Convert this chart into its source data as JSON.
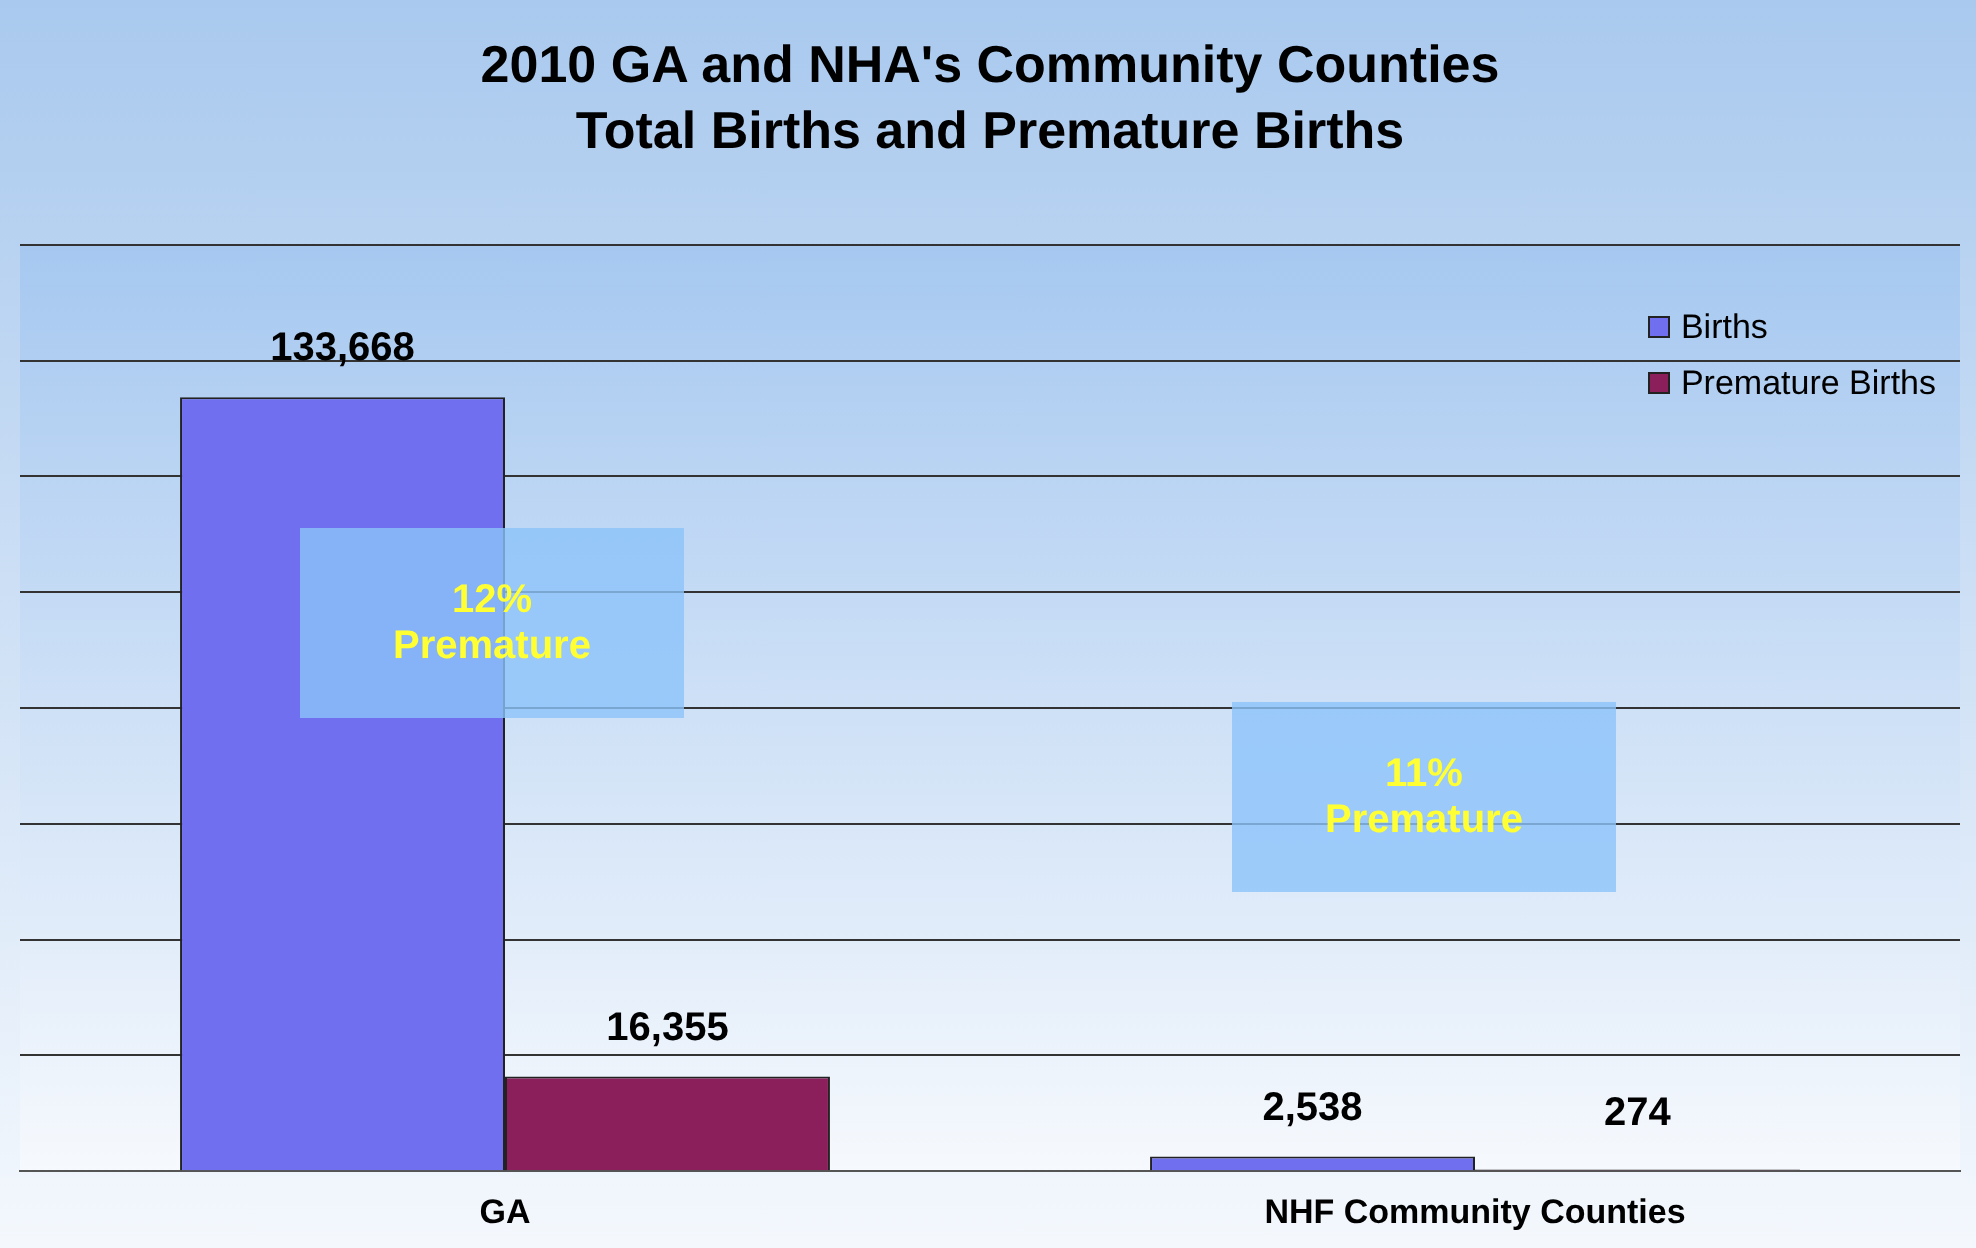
{
  "chart_data": {
    "type": "bar",
    "title": "2010 GA and NHA's Community Counties",
    "subtitle": "Total Births and Premature Births",
    "categories": [
      "GA",
      "NHF Community Counties"
    ],
    "series": [
      {
        "name": "Births",
        "color": "#6f6ff0",
        "values": [
          133668,
          2538
        ],
        "value_labels": [
          "133,668",
          "2,538"
        ]
      },
      {
        "name": "Premature Births",
        "color": "#8a1f5c",
        "values": [
          16355,
          274
        ],
        "value_labels": [
          "16,355",
          "274"
        ]
      }
    ],
    "ylim": [
      0,
      160000
    ],
    "yticks": [
      {
        "value": 0,
        "label": null
      },
      {
        "value": 20000,
        "label": null
      },
      {
        "value": 40000,
        "label": null
      },
      {
        "value": 60000,
        "label": null
      },
      {
        "value": 80000,
        "label": null
      },
      {
        "value": 100000,
        "label": null
      },
      {
        "value": 120000,
        "label": null
      },
      {
        "value": 140000,
        "label": null
      },
      {
        "value": 160000,
        "label": null
      }
    ],
    "tick_labels": "x",
    "grid": "y",
    "legend": "top right",
    "annotations": [
      "12% Premature",
      "11% Premature"
    ]
  }
}
